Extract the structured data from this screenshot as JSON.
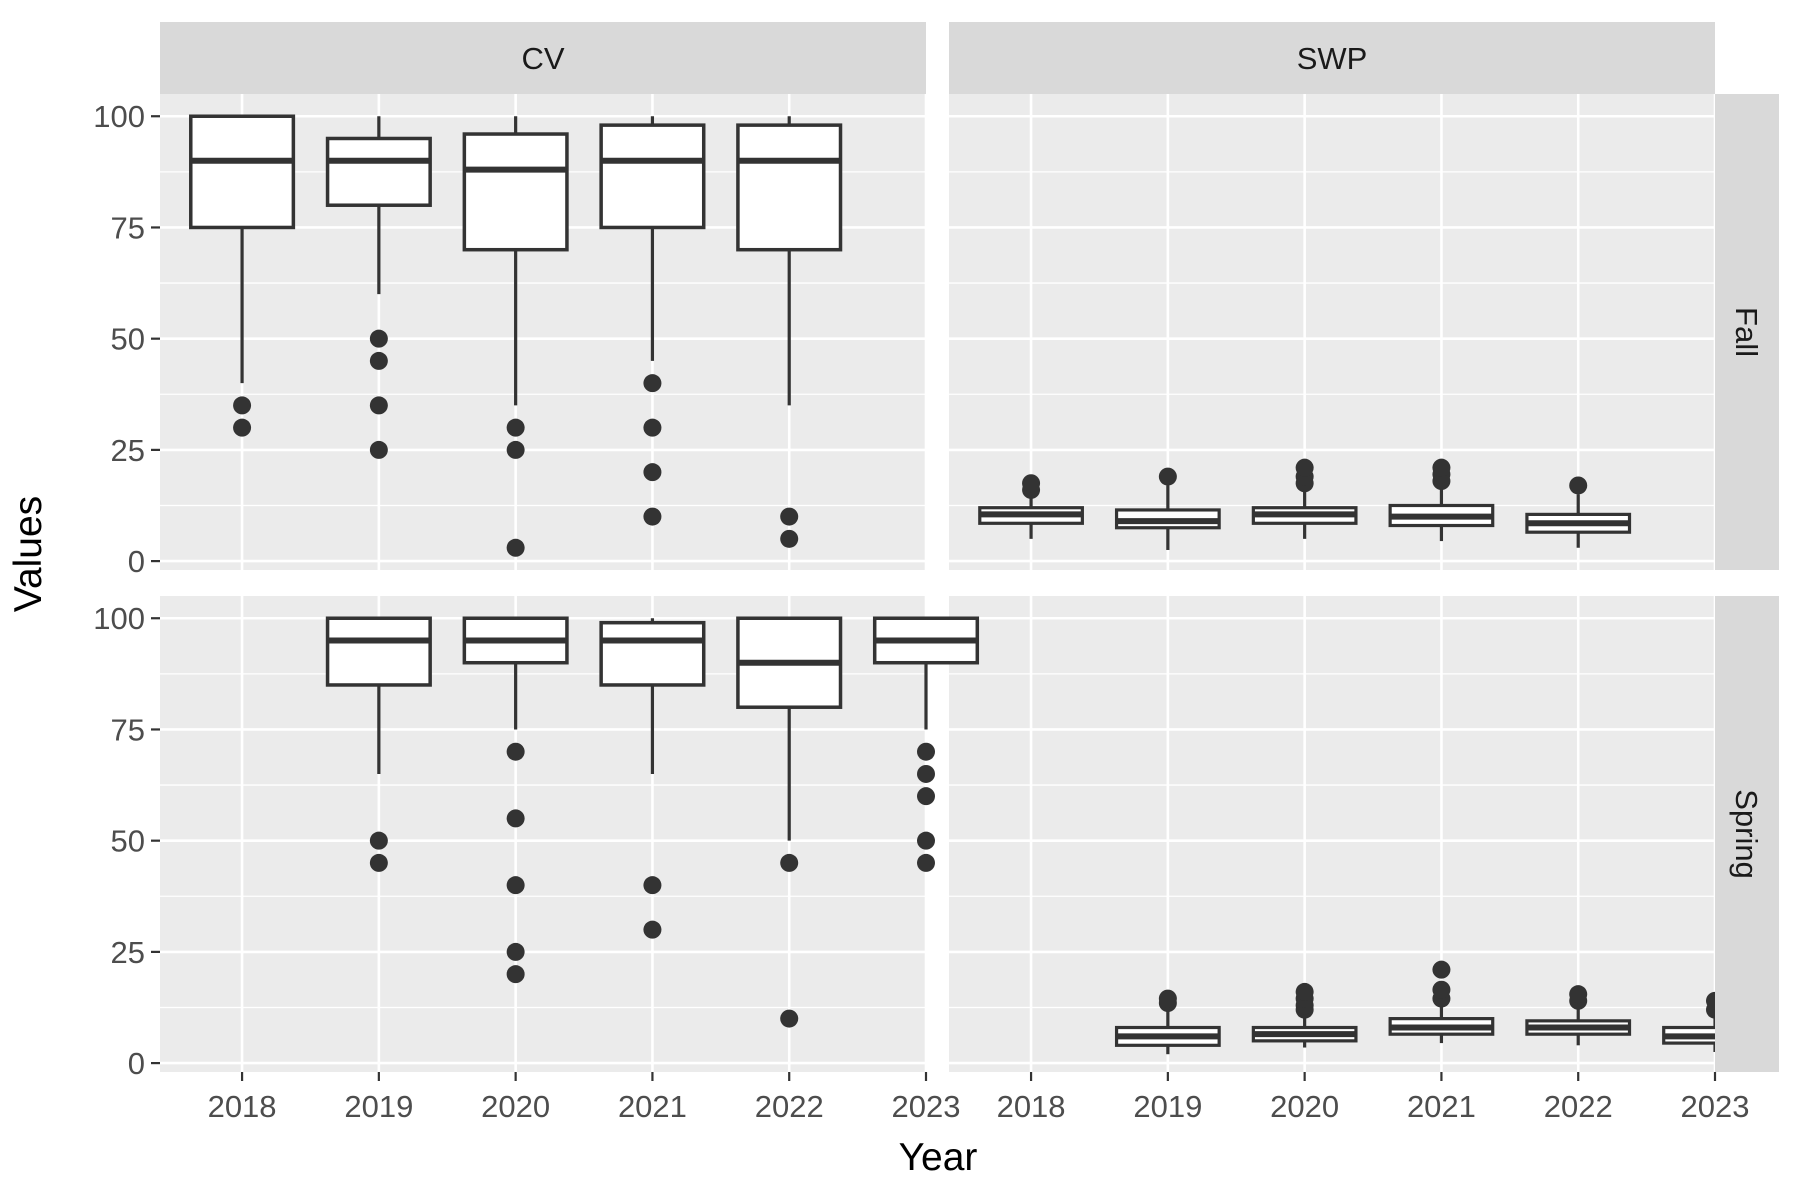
{
  "chart_data": {
    "type": "boxplot",
    "xlabel": "Year",
    "ylabel": "Values",
    "categories": [
      "2018",
      "2019",
      "2020",
      "2021",
      "2022",
      "2023"
    ],
    "column_facets": [
      "CV",
      "SWP"
    ],
    "row_facets": [
      "Fall",
      "Spring"
    ],
    "yticks": [
      0,
      25,
      50,
      75,
      100
    ],
    "ylim": [
      -2,
      105
    ],
    "grid": true,
    "panels": [
      {
        "column": "CV",
        "row": "Fall",
        "boxes": [
          {
            "x": "2018",
            "low": 40,
            "q1": 75,
            "median": 90,
            "q3": 100,
            "high": 100,
            "outliers": [
              35,
              30
            ]
          },
          {
            "x": "2019",
            "low": 60,
            "q1": 80,
            "median": 90,
            "q3": 95,
            "high": 100,
            "outliers": [
              50,
              45,
              35,
              25
            ]
          },
          {
            "x": "2020",
            "low": 35,
            "q1": 70,
            "median": 88,
            "q3": 96,
            "high": 100,
            "outliers": [
              30,
              25,
              3
            ]
          },
          {
            "x": "2021",
            "low": 45,
            "q1": 75,
            "median": 90,
            "q3": 98,
            "high": 100,
            "outliers": [
              40,
              30,
              20,
              10
            ]
          },
          {
            "x": "2022",
            "low": 35,
            "q1": 70,
            "median": 90,
            "q3": 98,
            "high": 100,
            "outliers": [
              10,
              5
            ]
          }
        ]
      },
      {
        "column": "SWP",
        "row": "Fall",
        "boxes": [
          {
            "x": "2018",
            "low": 5,
            "q1": 8.5,
            "median": 10.5,
            "q3": 12,
            "high": 15,
            "outliers": [
              16,
              17.5
            ]
          },
          {
            "x": "2019",
            "low": 2.5,
            "q1": 7.5,
            "median": 9,
            "q3": 11.5,
            "high": 17,
            "outliers": [
              19
            ]
          },
          {
            "x": "2020",
            "low": 5,
            "q1": 8.5,
            "median": 10.5,
            "q3": 12,
            "high": 16,
            "outliers": [
              17.5,
              19,
              21
            ]
          },
          {
            "x": "2021",
            "low": 4.5,
            "q1": 8,
            "median": 10,
            "q3": 12.5,
            "high": 17,
            "outliers": [
              18,
              19.5,
              21
            ]
          },
          {
            "x": "2022",
            "low": 3,
            "q1": 6.5,
            "median": 8.5,
            "q3": 10.5,
            "high": 15,
            "outliers": [
              17
            ]
          }
        ]
      },
      {
        "column": "CV",
        "row": "Spring",
        "boxes": [
          {
            "x": "2019",
            "low": 65,
            "q1": 85,
            "median": 95,
            "q3": 100,
            "high": 100,
            "outliers": [
              50,
              45
            ]
          },
          {
            "x": "2020",
            "low": 75,
            "q1": 90,
            "median": 95,
            "q3": 100,
            "high": 100,
            "outliers": [
              70,
              55,
              40,
              25,
              20
            ]
          },
          {
            "x": "2021",
            "low": 65,
            "q1": 85,
            "median": 95,
            "q3": 99,
            "high": 100,
            "outliers": [
              40,
              30
            ]
          },
          {
            "x": "2022",
            "low": 50,
            "q1": 80,
            "median": 90,
            "q3": 100,
            "high": 100,
            "outliers": [
              45,
              10
            ]
          },
          {
            "x": "2023",
            "low": 75,
            "q1": 90,
            "median": 95,
            "q3": 100,
            "high": 100,
            "outliers": [
              70,
              65,
              60,
              50,
              45
            ]
          }
        ]
      },
      {
        "column": "SWP",
        "row": "Spring",
        "boxes": [
          {
            "x": "2019",
            "low": 2,
            "q1": 4,
            "median": 6,
            "q3": 8,
            "high": 12,
            "outliers": [
              13.5,
              14.5
            ]
          },
          {
            "x": "2020",
            "low": 3.5,
            "q1": 5,
            "median": 6.5,
            "q3": 8,
            "high": 11,
            "outliers": [
              12,
              13,
              14.5,
              16
            ]
          },
          {
            "x": "2021",
            "low": 4.5,
            "q1": 6.5,
            "median": 8,
            "q3": 10,
            "high": 13,
            "outliers": [
              14.5,
              16.5,
              21
            ]
          },
          {
            "x": "2022",
            "low": 4,
            "q1": 6.5,
            "median": 8,
            "q3": 9.5,
            "high": 12.5,
            "outliers": [
              14,
              15.5
            ]
          },
          {
            "x": "2023",
            "low": 2.5,
            "q1": 4.5,
            "median": 6,
            "q3": 8,
            "high": 11,
            "outliers": [
              12,
              14
            ]
          }
        ]
      }
    ]
  }
}
